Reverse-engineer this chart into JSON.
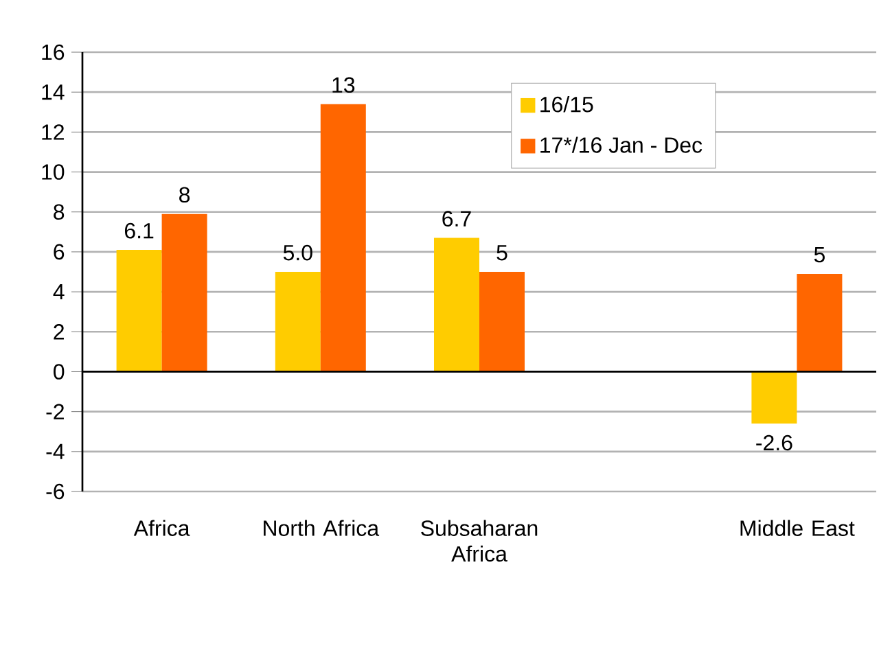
{
  "chart_data": {
    "type": "bar",
    "categories": [
      "Africa",
      "North Africa",
      "Subsaharan Africa",
      null,
      "Middle East"
    ],
    "series": [
      {
        "name": "16/15",
        "color": "#ffcc00",
        "values": [
          6.1,
          5.0,
          6.7,
          null,
          -2.6
        ],
        "value_labels": [
          "6.1",
          "5.0",
          "6.7",
          null,
          "-2.6"
        ]
      },
      {
        "name": "17*/16 Jan - Dec",
        "color": "#ff6600",
        "values": [
          7.9,
          13.4,
          5.0,
          null,
          4.9
        ],
        "value_labels": [
          "8",
          "13",
          "5",
          null,
          "5"
        ]
      }
    ],
    "ylim": [
      -6,
      16
    ],
    "yticks": [
      -6,
      -4,
      -2,
      0,
      2,
      4,
      6,
      8,
      10,
      12,
      14,
      16
    ],
    "grid": "y",
    "legend": "top right"
  }
}
